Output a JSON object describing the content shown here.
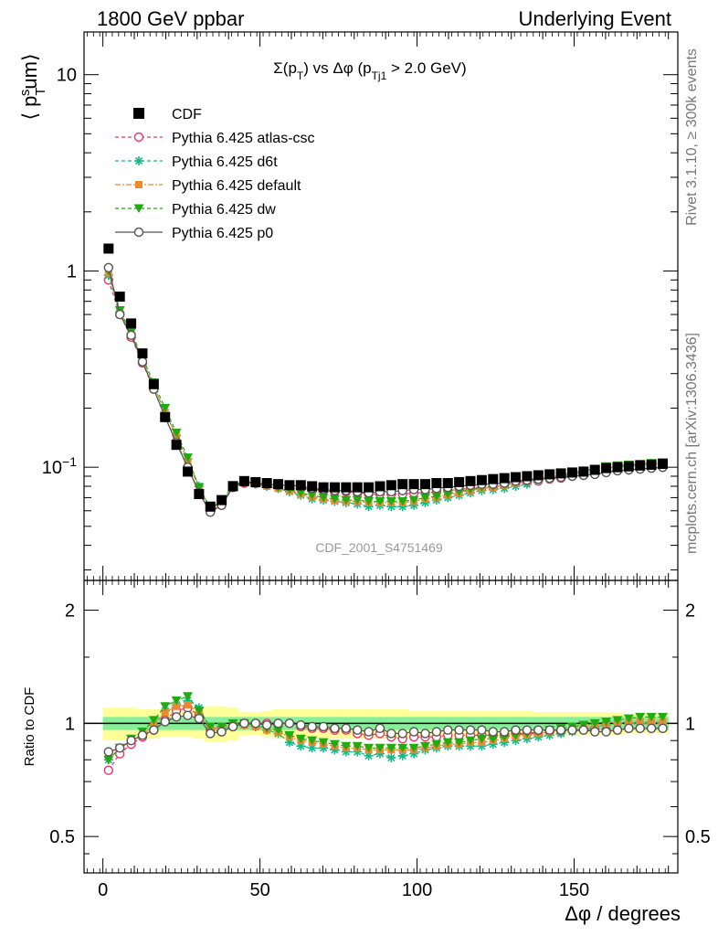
{
  "header": {
    "left": "1800 GeV ppbar",
    "right": "Underlying Event",
    "side_top": "Rivet 3.1.10, ≥ 300k events",
    "side_bottom": "mcplots.cern.ch [arXiv:1306.3436]",
    "analysis_id": "CDF_2001_S4751469"
  },
  "chart_data": [
    {
      "type": "scatter",
      "title": "Σ(p_T) vs Δφ (p_Tj1 > 2.0 GeV)",
      "ylabel": "⟨ p_T^s um⟩",
      "xlabel": "Δφ / degrees",
      "xlim": [
        -6,
        183
      ],
      "ylim": [
        0.0265,
        16.5
      ],
      "yscale": "log",
      "yticks": [
        {
          "v": 0.1,
          "label": "10^−1"
        },
        {
          "v": 1,
          "label": "1"
        },
        {
          "v": 10,
          "label": "10"
        }
      ],
      "legend_position": "top-left",
      "x": [
        1.8,
        5.4,
        9,
        12.6,
        16.2,
        19.8,
        23.4,
        27,
        30.6,
        34.2,
        37.8,
        41.4,
        45,
        48.6,
        52.2,
        55.8,
        59.4,
        63,
        66.6,
        70.2,
        73.8,
        77.4,
        81,
        84.6,
        88.2,
        91.8,
        95.4,
        99,
        102.6,
        106.2,
        109.8,
        113.4,
        117,
        120.6,
        124.2,
        127.8,
        131.4,
        135,
        138.6,
        142.2,
        145.8,
        149.4,
        153,
        156.6,
        160.2,
        163.8,
        167.4,
        171,
        174.6,
        178.2
      ],
      "series": [
        {
          "name": "CDF",
          "marker": "filled-square",
          "color": "#000000",
          "values": [
            1.3,
            0.74,
            0.54,
            0.38,
            0.265,
            0.18,
            0.13,
            0.095,
            0.073,
            0.063,
            0.068,
            0.08,
            0.085,
            0.084,
            0.083,
            0.082,
            0.081,
            0.081,
            0.08,
            0.079,
            0.079,
            0.079,
            0.079,
            0.079,
            0.08,
            0.081,
            0.082,
            0.082,
            0.082,
            0.083,
            0.083,
            0.084,
            0.085,
            0.086,
            0.087,
            0.088,
            0.089,
            0.09,
            0.091,
            0.092,
            0.093,
            0.094,
            0.095,
            0.097,
            0.099,
            0.1,
            0.101,
            0.102,
            0.103,
            0.104
          ]
        },
        {
          "name": "Pythia 6.425 atlas-csc",
          "marker": "open-circle",
          "color": "#ee3366",
          "dash": "4,3",
          "values": [
            0.9,
            0.6,
            0.46,
            0.34,
            0.25,
            0.18,
            0.135,
            0.1,
            0.075,
            0.06,
            0.064,
            0.079,
            0.083,
            0.083,
            0.082,
            0.081,
            0.08,
            0.078,
            0.077,
            0.076,
            0.075,
            0.075,
            0.074,
            0.073,
            0.073,
            0.073,
            0.073,
            0.074,
            0.074,
            0.075,
            0.076,
            0.077,
            0.078,
            0.079,
            0.08,
            0.081,
            0.083,
            0.084,
            0.085,
            0.087,
            0.088,
            0.09,
            0.091,
            0.093,
            0.095,
            0.096,
            0.097,
            0.098,
            0.099,
            0.1
          ]
        },
        {
          "name": "Pythia 6.425 d6t",
          "marker": "asterisk",
          "color": "#11bb88",
          "dash": "4,3",
          "values": [
            0.95,
            0.62,
            0.48,
            0.35,
            0.26,
            0.19,
            0.145,
            0.11,
            0.08,
            0.061,
            0.066,
            0.08,
            0.084,
            0.082,
            0.08,
            0.078,
            0.075,
            0.072,
            0.069,
            0.068,
            0.067,
            0.066,
            0.065,
            0.063,
            0.064,
            0.063,
            0.063,
            0.064,
            0.066,
            0.068,
            0.07,
            0.072,
            0.074,
            0.076,
            0.077,
            0.078,
            0.08,
            0.082,
            0.085,
            0.087,
            0.09,
            0.092,
            0.094,
            0.096,
            0.099,
            0.1,
            0.101,
            0.102,
            0.103,
            0.104
          ]
        },
        {
          "name": "Pythia 6.425 default",
          "marker": "filled-square",
          "color": "#ee8833",
          "dash": "6,2,2,2",
          "values": [
            0.98,
            0.62,
            0.48,
            0.35,
            0.26,
            0.19,
            0.145,
            0.107,
            0.078,
            0.061,
            0.066,
            0.08,
            0.084,
            0.082,
            0.08,
            0.078,
            0.076,
            0.073,
            0.071,
            0.069,
            0.068,
            0.067,
            0.067,
            0.066,
            0.066,
            0.066,
            0.066,
            0.067,
            0.069,
            0.07,
            0.072,
            0.074,
            0.076,
            0.078,
            0.079,
            0.081,
            0.083,
            0.085,
            0.087,
            0.089,
            0.091,
            0.093,
            0.095,
            0.097,
            0.1,
            0.101,
            0.102,
            0.103,
            0.104,
            0.105
          ]
        },
        {
          "name": "Pythia 6.425 dw",
          "marker": "filled-triangle-down",
          "color": "#22aa11",
          "dash": "4,3",
          "values": [
            1.0,
            0.63,
            0.49,
            0.36,
            0.27,
            0.2,
            0.15,
            0.112,
            0.079,
            0.062,
            0.067,
            0.081,
            0.085,
            0.083,
            0.081,
            0.079,
            0.077,
            0.074,
            0.072,
            0.07,
            0.069,
            0.068,
            0.068,
            0.067,
            0.067,
            0.067,
            0.067,
            0.068,
            0.07,
            0.071,
            0.073,
            0.075,
            0.077,
            0.079,
            0.08,
            0.082,
            0.084,
            0.086,
            0.088,
            0.09,
            0.092,
            0.094,
            0.096,
            0.098,
            0.101,
            0.102,
            0.103,
            0.104,
            0.105,
            0.106
          ]
        },
        {
          "name": "Pythia 6.425 p0",
          "marker": "open-circle",
          "color": "#555555",
          "dash": "",
          "values": [
            1.04,
            0.6,
            0.47,
            0.345,
            0.25,
            0.18,
            0.133,
            0.1,
            0.074,
            0.059,
            0.064,
            0.079,
            0.084,
            0.083,
            0.082,
            0.081,
            0.081,
            0.08,
            0.078,
            0.077,
            0.076,
            0.076,
            0.075,
            0.074,
            0.075,
            0.075,
            0.076,
            0.077,
            0.077,
            0.078,
            0.079,
            0.08,
            0.081,
            0.082,
            0.082,
            0.083,
            0.085,
            0.086,
            0.087,
            0.088,
            0.089,
            0.09,
            0.091,
            0.092,
            0.094,
            0.096,
            0.097,
            0.098,
            0.099,
            0.1
          ]
        }
      ]
    },
    {
      "type": "scatter",
      "ylabel": "Ratio to CDF",
      "xlabel": "Δφ / degrees",
      "xlim": [
        -6,
        183
      ],
      "ylim": [
        0.4,
        2.4
      ],
      "yscale": "log",
      "yticks": [
        {
          "v": 0.5,
          "label": "0.5"
        },
        {
          "v": 1,
          "label": "1"
        },
        {
          "v": 2,
          "label": "2"
        }
      ],
      "xticks": [
        0,
        50,
        100,
        150
      ],
      "band_yellow": [
        0.1,
        0.1,
        0.1,
        0.09,
        0.09,
        0.08,
        0.08,
        0.08,
        0.09,
        0.11,
        0.11,
        0.1,
        0.07,
        0.07,
        0.08,
        0.09,
        0.09,
        0.09,
        0.09,
        0.09,
        0.09,
        0.09,
        0.09,
        0.09,
        0.09,
        0.09,
        0.09,
        0.08,
        0.08,
        0.08,
        0.08,
        0.08,
        0.08,
        0.08,
        0.08,
        0.08,
        0.08,
        0.08,
        0.07,
        0.07,
        0.07,
        0.07,
        0.07,
        0.07,
        0.07,
        0.07,
        0.06,
        0.06,
        0.06,
        0.06
      ],
      "band_green": [
        0.04,
        0.04,
        0.04,
        0.04,
        0.04,
        0.04,
        0.04,
        0.04,
        0.04,
        0.04,
        0.04,
        0.04,
        0.04,
        0.04,
        0.04,
        0.04,
        0.04,
        0.04,
        0.04,
        0.04,
        0.04,
        0.04,
        0.04,
        0.04,
        0.04,
        0.04,
        0.04,
        0.04,
        0.04,
        0.04,
        0.04,
        0.04,
        0.04,
        0.04,
        0.04,
        0.04,
        0.04,
        0.04,
        0.04,
        0.04,
        0.04,
        0.04,
        0.04,
        0.04,
        0.04,
        0.04,
        0.04,
        0.04,
        0.04,
        0.04
      ],
      "x": [
        1.8,
        5.4,
        9,
        12.6,
        16.2,
        19.8,
        23.4,
        27,
        30.6,
        34.2,
        37.8,
        41.4,
        45,
        48.6,
        52.2,
        55.8,
        59.4,
        63,
        66.6,
        70.2,
        73.8,
        77.4,
        81,
        84.6,
        88.2,
        91.8,
        95.4,
        99,
        102.6,
        106.2,
        109.8,
        113.4,
        117,
        120.6,
        124.2,
        127.8,
        131.4,
        135,
        138.6,
        142.2,
        145.8,
        149.4,
        153,
        156.6,
        160.2,
        163.8,
        167.4,
        171,
        174.6,
        178.2
      ],
      "series": [
        {
          "name": "Pythia 6.425 atlas-csc",
          "marker": "open-circle",
          "color": "#ee3366",
          "dash": "4,3",
          "values": [
            0.75,
            0.83,
            0.88,
            0.92,
            0.96,
            1.02,
            1.08,
            1.1,
            1.05,
            0.96,
            0.95,
            0.98,
            1.0,
            1.0,
            1.0,
            0.99,
            1.0,
            0.98,
            0.97,
            0.97,
            0.96,
            0.96,
            0.94,
            0.93,
            0.94,
            0.92,
            0.91,
            0.92,
            0.92,
            0.92,
            0.93,
            0.93,
            0.93,
            0.93,
            0.93,
            0.93,
            0.94,
            0.94,
            0.94,
            0.95,
            0.95,
            0.96,
            0.96,
            0.96,
            0.96,
            0.96,
            0.97,
            0.97,
            0.97,
            0.97
          ]
        },
        {
          "name": "Pythia 6.425 d6t",
          "marker": "asterisk",
          "color": "#11bb88",
          "dash": "4,3",
          "values": [
            0.8,
            0.86,
            0.9,
            0.93,
            0.99,
            1.08,
            1.12,
            1.15,
            1.1,
            0.97,
            0.97,
            0.98,
            0.99,
            0.98,
            0.96,
            0.94,
            0.89,
            0.87,
            0.86,
            0.86,
            0.85,
            0.84,
            0.84,
            0.82,
            0.83,
            0.81,
            0.82,
            0.83,
            0.85,
            0.86,
            0.87,
            0.87,
            0.87,
            0.87,
            0.88,
            0.89,
            0.9,
            0.91,
            0.92,
            0.93,
            0.94,
            0.95,
            0.96,
            0.98,
            0.99,
            1.0,
            1.0,
            1.0,
            1.0,
            1.0
          ]
        },
        {
          "name": "Pythia 6.425 default",
          "marker": "filled-square",
          "color": "#ee8833",
          "dash": "6,2,2,2",
          "values": [
            0.82,
            0.86,
            0.9,
            0.93,
            0.99,
            1.07,
            1.11,
            1.12,
            1.07,
            0.97,
            0.97,
            0.99,
            0.99,
            0.98,
            0.96,
            0.95,
            0.92,
            0.9,
            0.89,
            0.88,
            0.87,
            0.86,
            0.86,
            0.85,
            0.85,
            0.85,
            0.85,
            0.85,
            0.86,
            0.87,
            0.88,
            0.88,
            0.89,
            0.89,
            0.9,
            0.91,
            0.92,
            0.93,
            0.94,
            0.95,
            0.96,
            0.97,
            0.98,
            0.99,
            1.0,
            1.01,
            1.01,
            1.01,
            1.01,
            1.01
          ]
        },
        {
          "name": "Pythia 6.425 dw",
          "marker": "filled-triangle-down",
          "color": "#22aa11",
          "dash": "4,3",
          "values": [
            0.8,
            0.86,
            0.91,
            0.95,
            1.02,
            1.11,
            1.15,
            1.18,
            1.08,
            0.98,
            0.98,
            1.0,
            1.0,
            0.99,
            0.97,
            0.96,
            0.93,
            0.91,
            0.9,
            0.89,
            0.88,
            0.87,
            0.87,
            0.86,
            0.86,
            0.86,
            0.86,
            0.86,
            0.87,
            0.88,
            0.89,
            0.89,
            0.9,
            0.91,
            0.91,
            0.92,
            0.93,
            0.94,
            0.95,
            0.96,
            0.97,
            0.98,
            0.99,
            1.0,
            1.01,
            1.02,
            1.03,
            1.04,
            1.04,
            1.04
          ]
        },
        {
          "name": "Pythia 6.425 p0",
          "marker": "open-circle",
          "color": "#555555",
          "dash": "",
          "values": [
            0.84,
            0.86,
            0.9,
            0.93,
            0.96,
            1.01,
            1.04,
            1.05,
            1.03,
            0.94,
            0.95,
            0.98,
            1.0,
            1.0,
            0.99,
            1.0,
            1.0,
            0.99,
            0.98,
            0.98,
            0.97,
            0.97,
            0.96,
            0.95,
            0.97,
            0.94,
            0.94,
            0.95,
            0.94,
            0.95,
            0.96,
            0.96,
            0.96,
            0.96,
            0.95,
            0.95,
            0.96,
            0.96,
            0.96,
            0.96,
            0.96,
            0.96,
            0.96,
            0.95,
            0.95,
            0.96,
            0.97,
            0.97,
            0.97,
            0.97
          ]
        }
      ]
    }
  ]
}
